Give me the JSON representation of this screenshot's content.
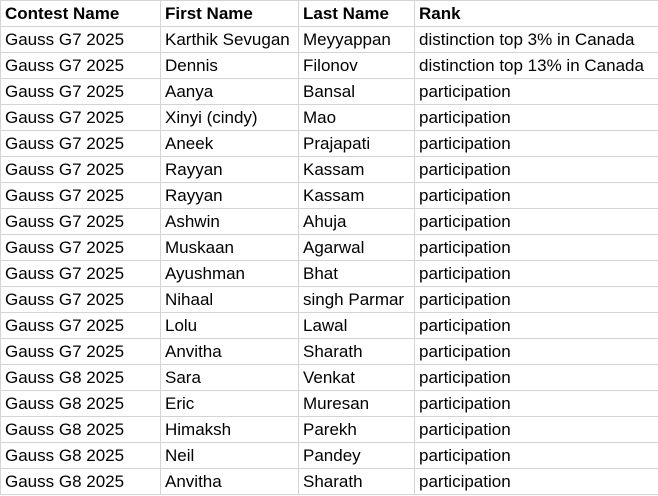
{
  "columns": [
    "Contest Name",
    "First Name",
    "Last Name",
    "Rank"
  ],
  "rows": [
    [
      "Gauss G7 2025",
      "Karthik Sevugan",
      "Meyyappan",
      "distinction top 3% in Canada"
    ],
    [
      "Gauss G7 2025",
      "Dennis",
      "Filonov",
      "distinction top 13% in Canada"
    ],
    [
      "Gauss G7 2025",
      "Aanya",
      "Bansal",
      "participation"
    ],
    [
      "Gauss G7 2025",
      "Xinyi (cindy)",
      "Mao",
      "participation"
    ],
    [
      "Gauss G7 2025",
      "Aneek",
      "Prajapati",
      "participation"
    ],
    [
      "Gauss G7 2025",
      "Rayyan",
      "Kassam",
      "participation"
    ],
    [
      "Gauss G7 2025",
      "Rayyan",
      "Kassam",
      "participation"
    ],
    [
      "Gauss G7 2025",
      "Ashwin",
      "Ahuja",
      "participation"
    ],
    [
      "Gauss G7 2025",
      "Muskaan",
      "Agarwal",
      "participation"
    ],
    [
      "Gauss G7 2025",
      "Ayushman",
      "Bhat",
      "participation"
    ],
    [
      "Gauss G7 2025",
      "Nihaal",
      "singh Parmar",
      "participation"
    ],
    [
      "Gauss G7 2025",
      "Lolu",
      "Lawal",
      "participation"
    ],
    [
      "Gauss G7 2025",
      "Anvitha",
      "Sharath",
      "participation"
    ],
    [
      "Gauss G8 2025",
      "Sara",
      "Venkat",
      "participation"
    ],
    [
      "Gauss G8 2025",
      "Eric",
      "Muresan",
      "participation"
    ],
    [
      "Gauss G8 2025",
      "Himaksh",
      "Parekh",
      "participation"
    ],
    [
      "Gauss G8 2025",
      "Neil",
      "Pandey",
      "participation"
    ],
    [
      "Gauss G8 2025",
      "Anvitha",
      "Sharath",
      "participation"
    ]
  ]
}
